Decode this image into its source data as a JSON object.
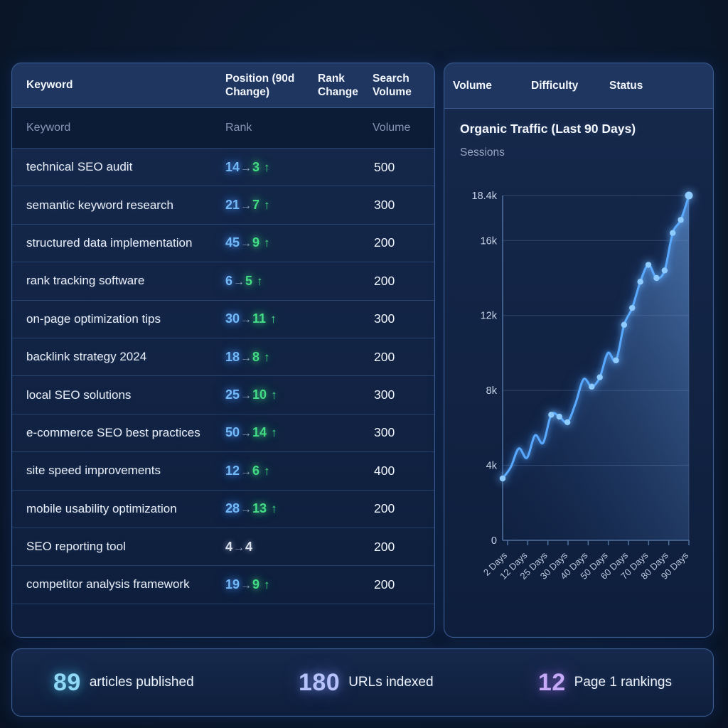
{
  "keyword_table": {
    "header": {
      "keyword": "Keyword",
      "position": "Position (90d Change)",
      "rank_change": "Rank Change",
      "search_volume": "Search Volume"
    },
    "subheader": {
      "keyword": "Keyword",
      "rank": "Rank",
      "volume": "Volume"
    },
    "glyphs": {
      "arrow_right": "→",
      "arrow_up": "↑"
    },
    "rows": [
      {
        "keyword": "technical SEO audit",
        "rank_from": "14",
        "rank_to": "3",
        "trend": "up",
        "volume": "500"
      },
      {
        "keyword": "semantic keyword research",
        "rank_from": "21",
        "rank_to": "7",
        "trend": "up",
        "volume": "300"
      },
      {
        "keyword": "structured data implementation",
        "rank_from": "45",
        "rank_to": "9",
        "trend": "up",
        "volume": "200"
      },
      {
        "keyword": "rank tracking software",
        "rank_from": "6",
        "rank_to": "5",
        "trend": "up",
        "volume": "200"
      },
      {
        "keyword": "on-page optimization tips",
        "rank_from": "30",
        "rank_to": "11",
        "trend": "up",
        "volume": "300"
      },
      {
        "keyword": "backlink strategy 2024",
        "rank_from": "18",
        "rank_to": "8",
        "trend": "up",
        "volume": "200"
      },
      {
        "keyword": "local SEO solutions",
        "rank_from": "25",
        "rank_to": "10",
        "trend": "up",
        "volume": "300"
      },
      {
        "keyword": "e-commerce SEO best practices",
        "rank_from": "50",
        "rank_to": "14",
        "trend": "up",
        "volume": "300"
      },
      {
        "keyword": "site speed improvements",
        "rank_from": "12",
        "rank_to": "6",
        "trend": "up",
        "volume": "400"
      },
      {
        "keyword": "mobile usability optimization",
        "rank_from": "28",
        "rank_to": "13",
        "trend": "up",
        "volume": "200"
      },
      {
        "keyword": "SEO reporting tool",
        "rank_from": "4",
        "rank_to": "4",
        "trend": "flat",
        "volume": "200"
      },
      {
        "keyword": "competitor analysis framework",
        "rank_from": "19",
        "rank_to": "9",
        "trend": "up",
        "volume": "200"
      }
    ]
  },
  "metrics_panel": {
    "columns": [
      {
        "label": "Volume"
      },
      {
        "label": "Difficulty"
      },
      {
        "label": "Status"
      }
    ]
  },
  "chart_data": {
    "type": "line",
    "title": "Organic Traffic (Last 90 Days)",
    "subtitle": "Sessions",
    "ylabel": "Sessions",
    "xlabel": "",
    "ylim": [
      0,
      18400
    ],
    "grid": "on",
    "legend": "none",
    "y_ticks": [
      {
        "label": "18.4k",
        "value": 18400
      },
      {
        "label": "16k",
        "value": 16000
      },
      {
        "label": "12k",
        "value": 12000
      },
      {
        "label": "8k",
        "value": 8000
      },
      {
        "label": "4k",
        "value": 4000
      },
      {
        "label": "0",
        "value": 0
      }
    ],
    "x_tick_labels": [
      "2 Days",
      "12 Days",
      "25 Days",
      "30 Days",
      "40 Days",
      "50 Days",
      "60 Days",
      "70 Days",
      "80 Days",
      "90 Days"
    ],
    "series": [
      {
        "name": "Sessions",
        "values": [
          3300,
          3900,
          4900,
          4400,
          5600,
          5200,
          6700,
          6600,
          6300,
          7300,
          8600,
          8200,
          8700,
          10000,
          9600,
          11500,
          12400,
          13800,
          14700,
          14000,
          14400,
          16400,
          17100,
          18400
        ]
      }
    ],
    "marker_indices": [
      0,
      6,
      7,
      8,
      11,
      12,
      14,
      15,
      16,
      17,
      18,
      19,
      20,
      21,
      22,
      23
    ],
    "line_color": "#58a9ff",
    "dot_color": "#8ecbff",
    "area_gradient": [
      "rgba(30,60,120,0.04)",
      "rgba(115,175,248,0.55)"
    ],
    "axis_color": "#51719f",
    "grid_color": "rgba(125,155,205,0.28)",
    "tick_label_color": "#c7d3e6"
  },
  "stats": [
    {
      "value": "89",
      "label": "articles published",
      "color": "#8fd8f6",
      "glow": "rgba(80,200,240,0.55)"
    },
    {
      "value": "180",
      "label": "URLs indexed",
      "color": "#b6c2f9",
      "glow": "rgba(130,150,250,0.55)"
    },
    {
      "value": "12",
      "label": "Page 1 rankings",
      "color": "#c6a9f7",
      "glow": "rgba(170,120,250,0.55)"
    }
  ],
  "colors": {
    "panel_border": "#3c5d94",
    "rank_from_blue": "#74b9f7",
    "rank_up_green": "#42dd84",
    "rank_flat_gray": "#d9dfea",
    "background": "#0b1830"
  }
}
